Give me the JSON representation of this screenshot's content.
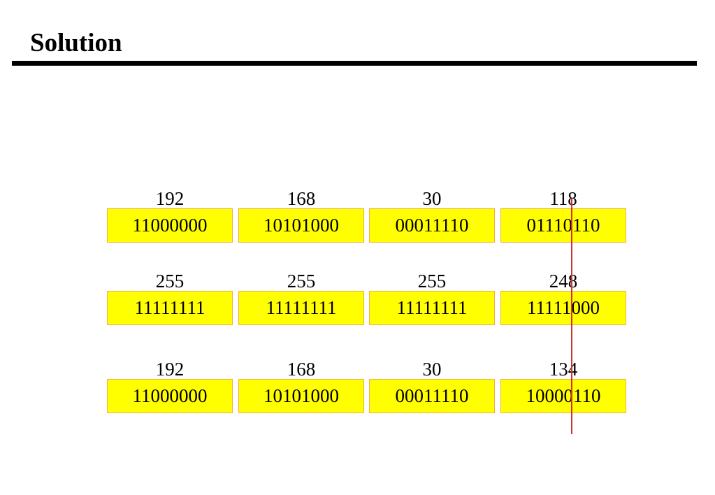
{
  "header": {
    "title": "Solution"
  },
  "rows": [
    {
      "octets": [
        {
          "decimal": "192",
          "binary": "11000000"
        },
        {
          "decimal": "168",
          "binary": "10101000"
        },
        {
          "decimal": "30",
          "binary": "00011110"
        },
        {
          "decimal": "118",
          "binary": "01110110"
        }
      ]
    },
    {
      "octets": [
        {
          "decimal": "255",
          "binary": "11111111"
        },
        {
          "decimal": "255",
          "binary": "11111111"
        },
        {
          "decimal": "255",
          "binary": "11111111"
        },
        {
          "decimal": "248",
          "binary": "11111000"
        }
      ]
    },
    {
      "octets": [
        {
          "decimal": "192",
          "binary": "11000000"
        },
        {
          "decimal": "168",
          "binary": "10101000"
        },
        {
          "decimal": "30",
          "binary": "00011110"
        },
        {
          "decimal": "134",
          "binary": "10000110"
        }
      ]
    }
  ]
}
